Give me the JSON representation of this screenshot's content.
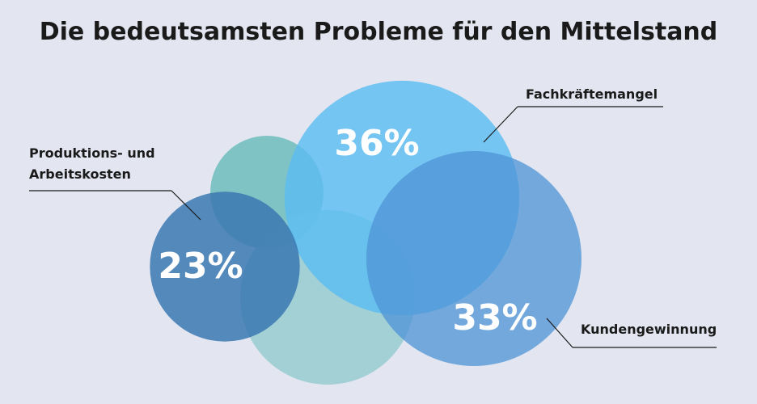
{
  "chart_data": {
    "type": "bubble",
    "title": "Die bedeutsamsten Probleme für den Mittelstand",
    "categories": [
      "Fachkräftemangel",
      "Kundengewinnung",
      "Produktions- und Arbeitskosten"
    ],
    "values": [
      36,
      33,
      23
    ],
    "value_labels": [
      "36%",
      "33%",
      "23%"
    ],
    "colors": [
      "#5bbdf2",
      "#4d93d6",
      "#3b78b1"
    ]
  }
}
